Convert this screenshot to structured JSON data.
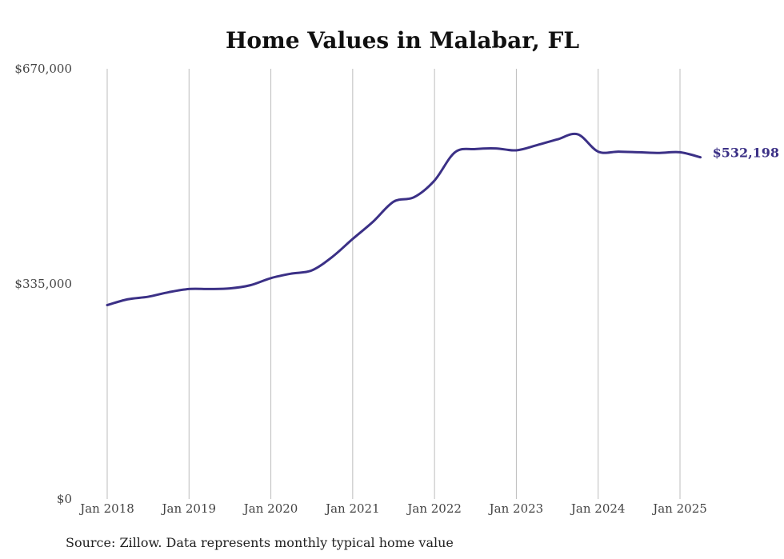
{
  "chart_data": {
    "type": "line",
    "title": "Home Values in Malabar, FL",
    "xlabel": "",
    "ylabel": "",
    "x_ticks": [
      "Jan 2018",
      "Jan 2019",
      "Jan 2020",
      "Jan 2021",
      "Jan 2022",
      "Jan 2023",
      "Jan 2024",
      "Jan 2025"
    ],
    "x_range": [
      "2018-01",
      "2025-04"
    ],
    "y_ticks": [
      "$0",
      "$335,000",
      "$670,000"
    ],
    "ylim": [
      0,
      670000
    ],
    "grid": "vertical",
    "line_color": "#3b3086",
    "end_label": "$532,198",
    "series": [
      {
        "x": [
          "2018-01",
          "2018-04",
          "2018-07",
          "2018-10",
          "2019-01",
          "2019-04",
          "2019-07",
          "2019-10",
          "2020-01",
          "2020-04",
          "2020-07",
          "2020-10",
          "2021-01",
          "2021-04",
          "2021-07",
          "2021-10",
          "2022-01",
          "2022-04",
          "2022-07",
          "2022-10",
          "2023-01",
          "2023-04",
          "2023-07",
          "2023-10",
          "2024-01",
          "2024-04",
          "2024-07",
          "2024-10",
          "2025-01",
          "2025-04"
        ],
        "values": [
          302000,
          311000,
          315000,
          322000,
          327000,
          327000,
          328000,
          333000,
          344000,
          351000,
          356000,
          377000,
          405000,
          432000,
          463000,
          470000,
          496000,
          540000,
          545000,
          546000,
          543000,
          551000,
          560000,
          568000,
          541000,
          541000,
          540000,
          539000,
          540000,
          532198
        ]
      }
    ]
  },
  "footer": {
    "source": "Source: Zillow. Data represents monthly typical home value"
  }
}
